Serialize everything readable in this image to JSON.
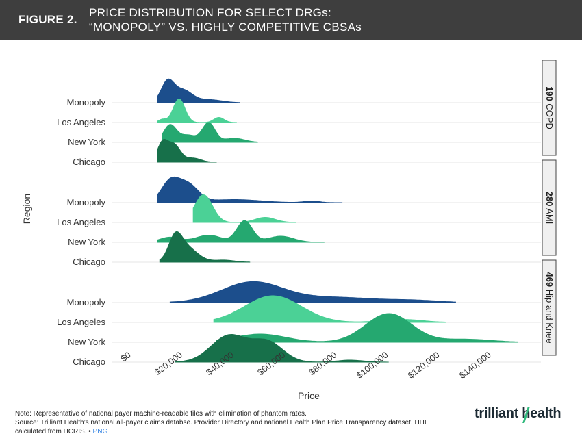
{
  "header": {
    "figure_label": "FIGURE 2.",
    "title_line1": "PRICE DISTRIBUTION FOR SELECT DRGs:",
    "title_line2": "“MONOPOLY” VS. HIGHLY COMPETITIVE CBSAs"
  },
  "chart_data": {
    "type": "ridgeline",
    "xlabel": "Price",
    "ylabel": "Region",
    "xlim": [
      0,
      150000
    ],
    "x_ticks": [
      0,
      20000,
      40000,
      60000,
      80000,
      100000,
      120000,
      140000
    ],
    "x_tick_labels": [
      "$0",
      "$20,000",
      "$40,000",
      "$60,000",
      "$80,000",
      "$100,000",
      "$120,000",
      "$140,000"
    ],
    "colors": {
      "Monopoly": "#1c4e8c",
      "Los Angeles": "#4bd196",
      "New York": "#25a870",
      "Chicago": "#17704a"
    },
    "panels": [
      {
        "label_bold": "190",
        "label_rest": " COPD",
        "regions": [
          {
            "name": "Monopoly",
            "range": [
              10000,
              42000
            ],
            "peaks": [
              [
                14000,
                1.0,
                2500
              ],
              [
                20000,
                0.6,
                3500
              ]
            ],
            "tail": [
              [
                30000,
                0.15,
                5000
              ]
            ]
          },
          {
            "name": "Los Angeles",
            "range": [
              10000,
              41000
            ],
            "peaks": [
              [
                18500,
                1.15,
                2300
              ]
            ],
            "tail": [
              [
                34000,
                0.25,
                2000
              ],
              [
                12000,
                0.15,
                1500
              ]
            ]
          },
          {
            "name": "New York",
            "range": [
              12000,
              49000
            ],
            "peaks": [
              [
                15000,
                0.85,
                2500
              ],
              [
                30000,
                0.95,
                2500
              ]
            ],
            "tail": [
              [
                22000,
                0.35,
                3000
              ],
              [
                40000,
                0.2,
                4000
              ]
            ]
          },
          {
            "name": "Chicago",
            "range": [
              10000,
              33000
            ],
            "peaks": [
              [
                12000,
                0.9,
                2000
              ],
              [
                16500,
                0.85,
                2500
              ]
            ],
            "tail": [
              [
                24000,
                0.2,
                3000
              ]
            ]
          }
        ]
      },
      {
        "label_bold": "280",
        "label_rest": " AMI",
        "regions": [
          {
            "name": "Monopoly",
            "range": [
              10000,
              82000
            ],
            "peaks": [
              [
                15000,
                1.0,
                3500
              ],
              [
                22000,
                0.85,
                4000
              ]
            ],
            "tail": [
              [
                40000,
                0.15,
                10000
              ],
              [
                70000,
                0.08,
                3000
              ]
            ]
          },
          {
            "name": "Los Angeles",
            "range": [
              24000,
              64000
            ],
            "peaks": [
              [
                28000,
                1.35,
                3500
              ]
            ],
            "tail": [
              [
                52000,
                0.25,
                4000
              ]
            ]
          },
          {
            "name": "New York",
            "range": [
              10000,
              75000
            ],
            "peaks": [
              [
                44000,
                1.05,
                3000
              ]
            ],
            "tail": [
              [
                15000,
                0.25,
                4000
              ],
              [
                30000,
                0.35,
                5000
              ],
              [
                58000,
                0.3,
                5000
              ]
            ]
          },
          {
            "name": "Chicago",
            "range": [
              11000,
              46000
            ],
            "peaks": [
              [
                17000,
                0.95,
                2500
              ],
              [
                21000,
                0.75,
                4500
              ]
            ],
            "tail": [
              [
                36000,
                0.1,
                4000
              ]
            ]
          }
        ]
      },
      {
        "label_bold": "469",
        "label_rest": " Hip and Knee",
        "regions": [
          {
            "name": "Monopoly",
            "range": [
              15000,
              126000
            ],
            "peaks": [
              [
                47000,
                1.0,
                12000
              ]
            ],
            "tail": [
              [
                80000,
                0.25,
                15000
              ],
              [
                110000,
                0.1,
                10000
              ]
            ]
          },
          {
            "name": "Los Angeles",
            "range": [
              32000,
              122000
            ],
            "peaks": [
              [
                55000,
                1.3,
                11000
              ]
            ],
            "tail": [
              [
                105000,
                0.15,
                8000
              ]
            ]
          },
          {
            "name": "New York",
            "range": [
              33000,
              150000
            ],
            "peaks": [
              [
                100000,
                1.4,
                9000
              ]
            ],
            "tail": [
              [
                50000,
                0.4,
                10000
              ],
              [
                130000,
                0.15,
                10000
              ]
            ]
          },
          {
            "name": "Chicago",
            "range": [
              17000,
              100000
            ],
            "peaks": [
              [
                38000,
                1.3,
                7000
              ],
              [
                53000,
                0.95,
                6000
              ]
            ],
            "tail": [
              [
                85000,
                0.1,
                5000
              ]
            ]
          }
        ]
      }
    ]
  },
  "footer": {
    "note": "Note: Representative of national payer machine-readable files with elimination of phantom rates.",
    "source": "Source: Trilliant Health’s national all-payer claims databse. Provider Directory and national Health Plan Price Transparency dataset. HHI calculated from HCRIS.",
    "separator": " • ",
    "png_link": "PNG",
    "brand": "trilliant health"
  }
}
